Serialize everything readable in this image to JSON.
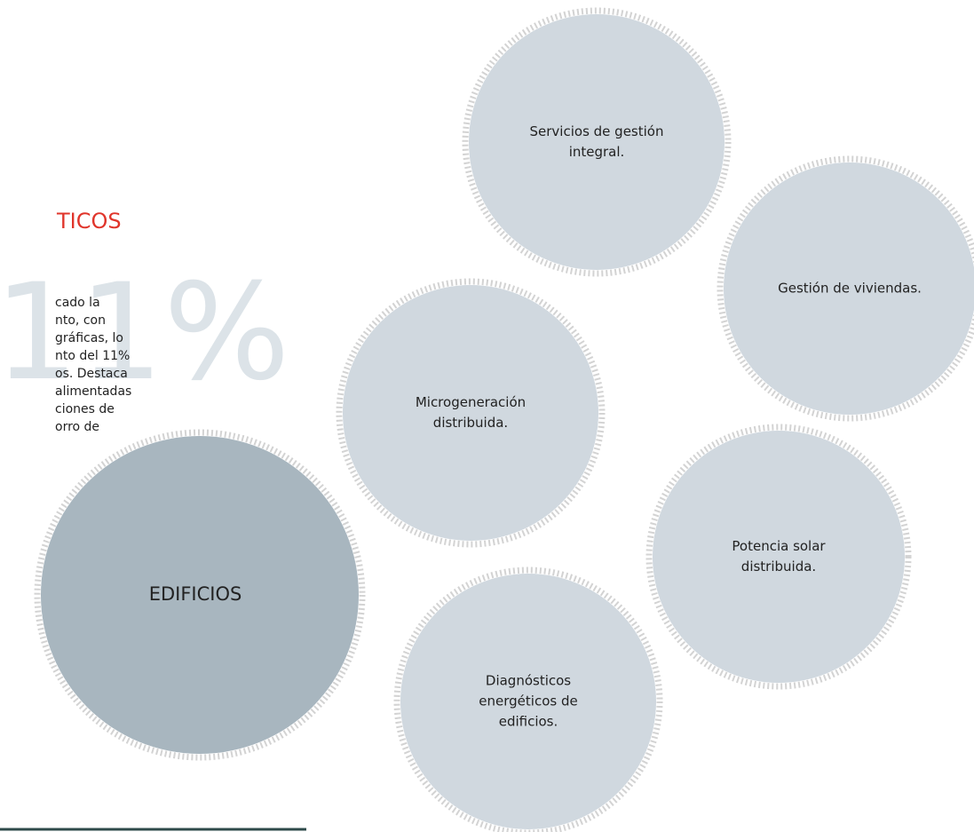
{
  "heading": "TICOS",
  "paragraph_lines": [
    "cado la",
    "nto, con",
    "gráficas, lo",
    "nto del 11%",
    "os. Destaca",
    "alimentadas",
    "ciones de",
    "orro de"
  ],
  "big_figure": "11%",
  "hub": {
    "label": "EDIFICIOS"
  },
  "nodes": [
    {
      "lines": [
        "Servicios de gestión",
        "integral."
      ]
    },
    {
      "lines": [
        "Gestión de viviendas."
      ]
    },
    {
      "lines": [
        "Microgeneración",
        "distribuida."
      ]
    },
    {
      "lines": [
        "Potencia solar",
        "distribuida."
      ]
    },
    {
      "lines": [
        "Diagnósticos",
        "energéticos de",
        "edificios."
      ]
    }
  ]
}
